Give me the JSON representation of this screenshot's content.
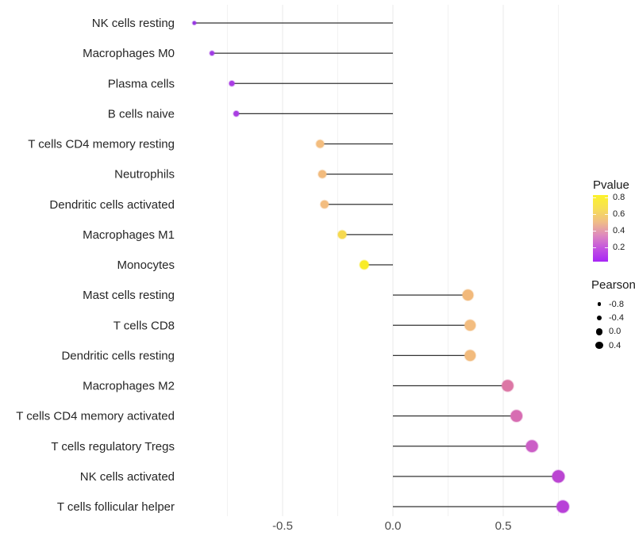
{
  "figure": {
    "background": "#ffffff"
  },
  "axis": {
    "x_tick_labels": [
      "-0.5",
      "0.0",
      "0.5"
    ],
    "x_ticks": [
      -0.5,
      0.0,
      0.5
    ],
    "x_minor_ticks": [
      -0.75,
      -0.25,
      0.25,
      0.75
    ],
    "tick_text_color": "#4d4d4d",
    "category_text_color": "#262626",
    "grid_major_color": "#e8e8e8",
    "grid_minor_color": "#f2f2f2",
    "stem_color": "#333333"
  },
  "legends": {
    "pvalue": {
      "title": "Pvalue",
      "tick_labels": [
        "0.8",
        "0.6",
        "0.4",
        "0.2"
      ],
      "gradient_bottom_to_top": [
        "#a826f5",
        "#c353e0",
        "#de8abd",
        "#f0be85",
        "#f7e054",
        "#fcf22b"
      ]
    },
    "pearson": {
      "title": "Pearson",
      "dot_color": "#000000",
      "items": [
        {
          "label": "-0.8",
          "r": 2.2
        },
        {
          "label": "-0.4",
          "r": 3.3
        },
        {
          "label": "0.0",
          "r": 4.3
        },
        {
          "label": "0.4",
          "r": 4.7
        }
      ]
    }
  },
  "chart_data": {
    "type": "scatter",
    "variant": "lollipop",
    "orientation": "horizontal",
    "title": "",
    "xlabel": "",
    "ylabel": "",
    "xlim": [
      -0.97,
      0.85
    ],
    "size_encoding": "Pearson",
    "color_encoding": "Pvalue",
    "points": [
      {
        "category": "NK cells resting",
        "pearson": -0.9,
        "color": "#9838e2"
      },
      {
        "category": "Macrophages M0",
        "pearson": -0.82,
        "color": "#a03ce4"
      },
      {
        "category": "Plasma cells",
        "pearson": -0.73,
        "color": "#aa3ce4"
      },
      {
        "category": "B cells naive",
        "pearson": -0.71,
        "color": "#a93ee2"
      },
      {
        "category": "T cells CD4 memory resting",
        "pearson": -0.33,
        "color": "#f3bd7f"
      },
      {
        "category": "Neutrophils",
        "pearson": -0.32,
        "color": "#f2bb7d"
      },
      {
        "category": "Dendritic cells activated",
        "pearson": -0.31,
        "color": "#f3bd80"
      },
      {
        "category": "Macrophages M1",
        "pearson": -0.23,
        "color": "#f6d94f"
      },
      {
        "category": "Monocytes",
        "pearson": -0.13,
        "color": "#f8ec28"
      },
      {
        "category": "Mast cells resting",
        "pearson": 0.34,
        "color": "#f2b97b"
      },
      {
        "category": "T cells CD8",
        "pearson": 0.35,
        "color": "#f3bd80"
      },
      {
        "category": "Dendritic cells resting",
        "pearson": 0.35,
        "color": "#f2bb7d"
      },
      {
        "category": "Macrophages M2",
        "pearson": 0.52,
        "color": "#dc77a5"
      },
      {
        "category": "T cells CD4 memory activated",
        "pearson": 0.56,
        "color": "#d76db2"
      },
      {
        "category": "T cells regulatory  Tregs",
        "pearson": 0.63,
        "color": "#cb5ec6"
      },
      {
        "category": "NK cells activated",
        "pearson": 0.75,
        "color": "#bb45d2"
      },
      {
        "category": "T cells follicular helper",
        "pearson": 0.77,
        "color": "#b840d8"
      }
    ]
  }
}
